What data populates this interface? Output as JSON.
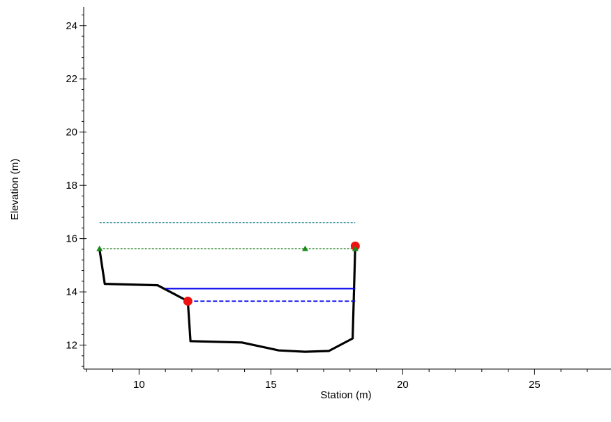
{
  "chart_data": {
    "type": "line",
    "xlabel": "Station (m)",
    "ylabel": "Elevation (m)",
    "xlim": [
      7.9,
      27.9
    ],
    "ylim": [
      11.1,
      24.7
    ],
    "x_ticks": [
      10,
      15,
      20,
      25
    ],
    "x_tick_labels": [
      "10",
      "15",
      "20",
      "25"
    ],
    "y_ticks": [
      12,
      14,
      16,
      18,
      20,
      22,
      24
    ],
    "y_tick_labels": [
      "12",
      "14",
      "16",
      "18",
      "20",
      "22",
      "24"
    ],
    "x_minor_step": 1,
    "y_minor_step": 0.4,
    "grid": false,
    "series": [
      {
        "style": "ground",
        "color": "#000000",
        "points": [
          [
            8.5,
            15.6
          ],
          [
            8.7,
            14.3
          ],
          [
            10.7,
            14.25
          ],
          [
            11.85,
            13.65
          ],
          [
            11.95,
            12.15
          ],
          [
            13.9,
            12.1
          ],
          [
            15.3,
            11.8
          ],
          [
            16.3,
            11.75
          ],
          [
            17.2,
            11.78
          ],
          [
            18.1,
            12.25
          ],
          [
            18.2,
            15.7
          ]
        ]
      },
      {
        "style": "dotted-cyan",
        "color": "#4a9aa5",
        "points": [
          [
            8.5,
            16.6
          ],
          [
            18.2,
            16.6
          ]
        ]
      },
      {
        "style": "dotted-green",
        "color": "#1f7a1f",
        "points": [
          [
            8.5,
            15.62
          ],
          [
            18.2,
            15.62
          ]
        ]
      },
      {
        "style": "solid-blue",
        "color": "#0000ee",
        "points": [
          [
            11.0,
            14.12
          ],
          [
            18.2,
            14.12
          ]
        ]
      },
      {
        "style": "dashed-blue",
        "color": "#0000ee",
        "points": [
          [
            11.85,
            13.65
          ],
          [
            18.2,
            13.65
          ]
        ]
      }
    ],
    "markers": [
      {
        "shape": "circle",
        "color": "#ee1111",
        "x": 11.85,
        "y": 13.65
      },
      {
        "shape": "circle",
        "color": "#ee1111",
        "x": 18.2,
        "y": 15.72
      },
      {
        "shape": "triangle",
        "color": "#1a8a1a",
        "x": 8.5,
        "y": 15.62
      },
      {
        "shape": "triangle",
        "color": "#1a8a1a",
        "x": 16.3,
        "y": 15.62
      },
      {
        "shape": "triangle",
        "color": "#1a8a1a",
        "x": 18.2,
        "y": 15.62
      }
    ]
  }
}
